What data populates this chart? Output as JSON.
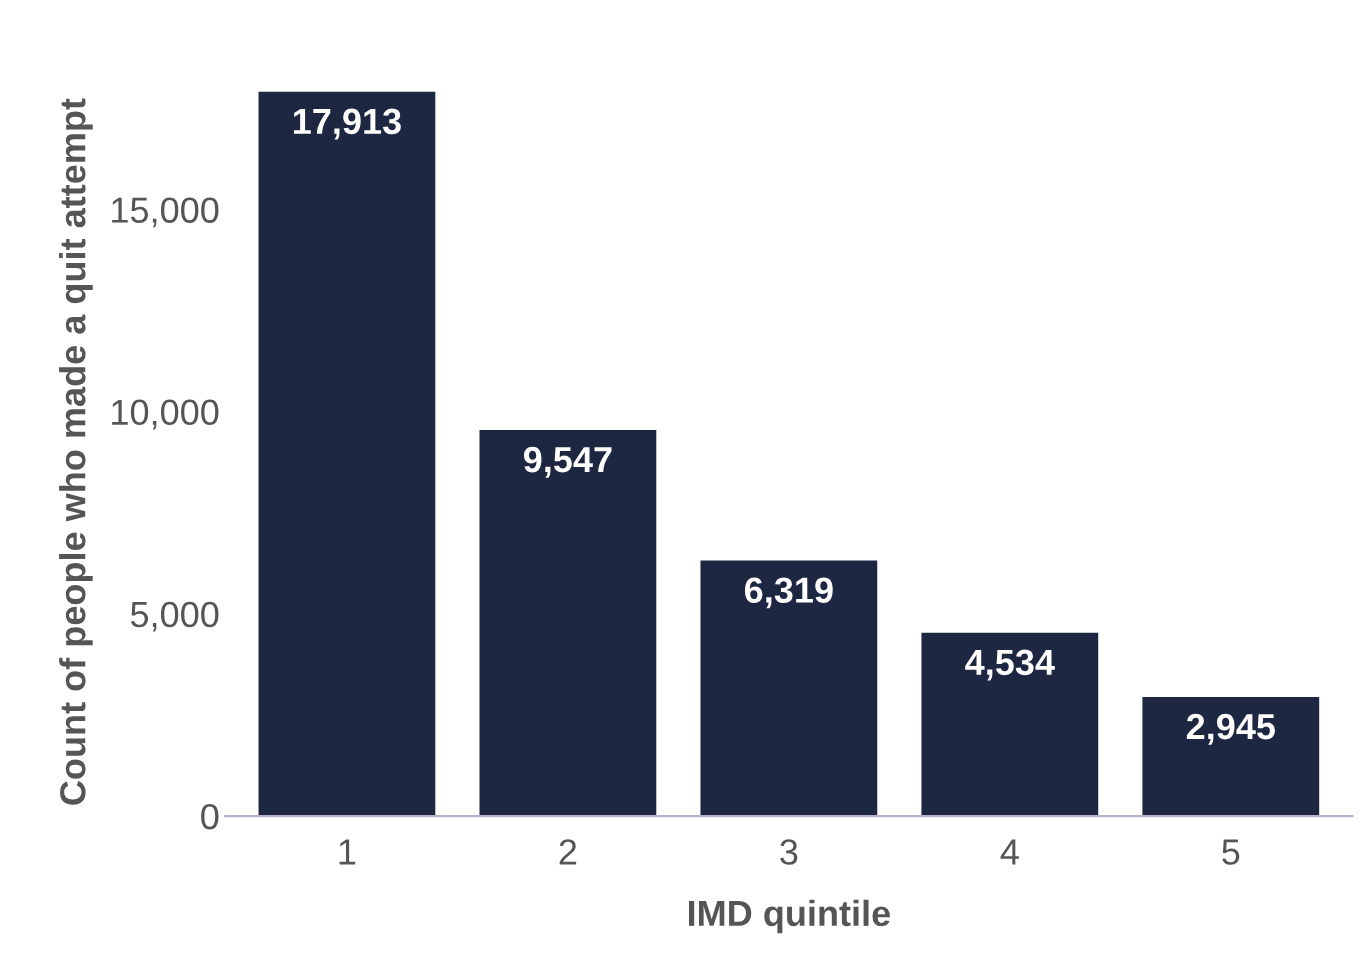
{
  "chart_data": {
    "type": "bar",
    "xlabel": "IMD quintile",
    "ylabel": "Count of people who made a quit attempt",
    "categories": [
      "1",
      "2",
      "3",
      "4",
      "5"
    ],
    "values": [
      17913,
      9547,
      6319,
      4534,
      2945
    ],
    "value_labels": [
      "17,913",
      "9,547",
      "6,319",
      "4,534",
      "2,945"
    ],
    "color": "#1e2741",
    "ylim": [
      0,
      18000
    ],
    "yticks": [
      0,
      {
        "value": 5000,
        "label": "5,000"
      },
      {
        "value": 10000,
        "label": "10,000"
      },
      {
        "value": 15000,
        "label": "15,000"
      }
    ],
    "grid": false,
    "legend": false
  }
}
